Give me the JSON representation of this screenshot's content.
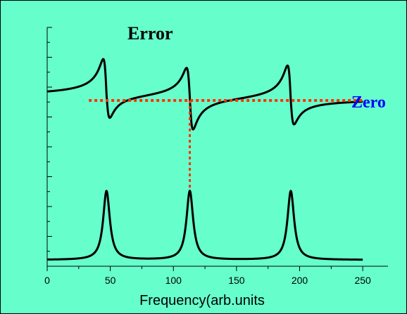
{
  "colors": {
    "background": "#66ffcc",
    "curve": "#000000",
    "zero_line": "#ff3300",
    "zero_label": "#0000ff"
  },
  "chart_data": {
    "type": "line",
    "title": "",
    "xlabel": "Frequency(arb.units",
    "ylabel": "",
    "xlim": [
      0,
      270
    ],
    "x_ticks": [
      {
        "value": 0,
        "label": "0"
      },
      {
        "value": 50,
        "label": "50"
      },
      {
        "value": 100,
        "label": "100"
      },
      {
        "value": 150,
        "label": "150"
      },
      {
        "value": 200,
        "label": "200"
      },
      {
        "value": 250,
        "label": "250"
      }
    ],
    "y_ticks_shown": true,
    "y_tick_labels_shown": false,
    "x_range_plotted": [
      0,
      250
    ],
    "peak_positions": [
      47,
      113,
      193
    ],
    "series": [
      {
        "label": "Error",
        "kind": "dispersion",
        "baseline": 0,
        "peak_amplitudes": [
          1.25,
          1.05,
          1.25
        ],
        "trough_amplitudes": [
          -0.85,
          -1.15,
          -0.85
        ]
      },
      {
        "label": "",
        "kind": "lorentzian",
        "baseline": 0,
        "peak_heights": [
          1,
          1,
          1
        ]
      }
    ],
    "annotations": [
      {
        "text": "Error",
        "kind": "label"
      },
      {
        "text": "Zero",
        "kind": "reference-line",
        "x_range": [
          33,
          250
        ],
        "drop_at_x": 113
      }
    ],
    "grid": false,
    "legend": "none"
  }
}
